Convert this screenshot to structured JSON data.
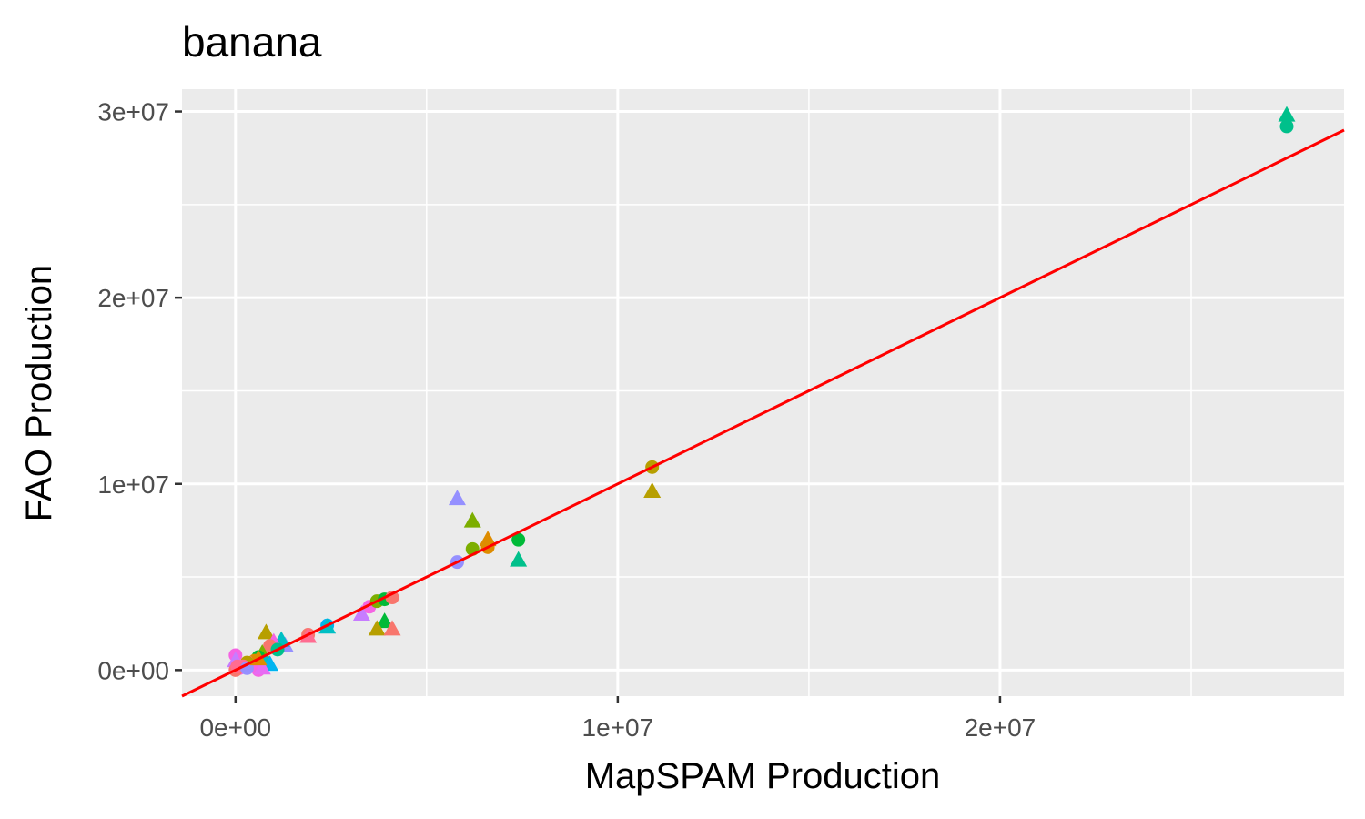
{
  "chart_data": {
    "type": "scatter",
    "title": "banana",
    "xlabel": "MapSPAM Production",
    "ylabel": "FAO Production",
    "xlim": [
      -1400000,
      29000000
    ],
    "ylim": [
      -1400000,
      31200000
    ],
    "x_ticks": [
      {
        "value": 0,
        "label": "0e+00"
      },
      {
        "value": 10000000,
        "label": "1e+07"
      },
      {
        "value": 20000000,
        "label": "2e+07"
      }
    ],
    "y_ticks": [
      {
        "value": 0,
        "label": "0e+00"
      },
      {
        "value": 10000000,
        "label": "1e+07"
      },
      {
        "value": 20000000,
        "label": "2e+07"
      },
      {
        "value": 30000000,
        "label": "3e+07"
      }
    ],
    "grid": true,
    "panel_background": "#ebebeb",
    "reference_line": {
      "x": [
        -1400000,
        29000000
      ],
      "y": [
        -1400000,
        29000000
      ],
      "color": "#ff0000"
    },
    "points": [
      {
        "x": 27500000,
        "y": 29200000,
        "shape": "circle",
        "color": "#00c08b"
      },
      {
        "x": 27500000,
        "y": 29800000,
        "shape": "triangle",
        "color": "#00c08b"
      },
      {
        "x": 10900000,
        "y": 10900000,
        "shape": "circle",
        "color": "#b79f00"
      },
      {
        "x": 10900000,
        "y": 9600000,
        "shape": "triangle",
        "color": "#b79f00"
      },
      {
        "x": 5800000,
        "y": 9200000,
        "shape": "triangle",
        "color": "#9590ff"
      },
      {
        "x": 5800000,
        "y": 5800000,
        "shape": "circle",
        "color": "#9590ff"
      },
      {
        "x": 6200000,
        "y": 8000000,
        "shape": "triangle",
        "color": "#7cae00"
      },
      {
        "x": 6200000,
        "y": 6500000,
        "shape": "circle",
        "color": "#7cae00"
      },
      {
        "x": 6600000,
        "y": 7000000,
        "shape": "triangle",
        "color": "#de8c00"
      },
      {
        "x": 6600000,
        "y": 6600000,
        "shape": "circle",
        "color": "#de8c00"
      },
      {
        "x": 7400000,
        "y": 7000000,
        "shape": "circle",
        "color": "#00ba38"
      },
      {
        "x": 7400000,
        "y": 5900000,
        "shape": "triangle",
        "color": "#00c08b"
      },
      {
        "x": 3500000,
        "y": 3400000,
        "shape": "circle",
        "color": "#f564e3"
      },
      {
        "x": 3300000,
        "y": 3000000,
        "shape": "triangle",
        "color": "#c77cff"
      },
      {
        "x": 3700000,
        "y": 3700000,
        "shape": "circle",
        "color": "#7cae00"
      },
      {
        "x": 3900000,
        "y": 3800000,
        "shape": "circle",
        "color": "#00ba38"
      },
      {
        "x": 4100000,
        "y": 3900000,
        "shape": "circle",
        "color": "#f8766d"
      },
      {
        "x": 3900000,
        "y": 2600000,
        "shape": "triangle",
        "color": "#00ba38"
      },
      {
        "x": 3700000,
        "y": 2200000,
        "shape": "triangle",
        "color": "#b79f00"
      },
      {
        "x": 4100000,
        "y": 2200000,
        "shape": "triangle",
        "color": "#f8766d"
      },
      {
        "x": 2400000,
        "y": 2400000,
        "shape": "circle",
        "color": "#00b4f0"
      },
      {
        "x": 2400000,
        "y": 2300000,
        "shape": "triangle",
        "color": "#00bfc4"
      },
      {
        "x": 1900000,
        "y": 1900000,
        "shape": "circle",
        "color": "#f8766d"
      },
      {
        "x": 1900000,
        "y": 1800000,
        "shape": "triangle",
        "color": "#ff6c91"
      },
      {
        "x": 1300000,
        "y": 1300000,
        "shape": "triangle",
        "color": "#9590ff"
      },
      {
        "x": 1200000,
        "y": 1600000,
        "shape": "triangle",
        "color": "#00bfc4"
      },
      {
        "x": 800000,
        "y": 2000000,
        "shape": "triangle",
        "color": "#b79f00"
      },
      {
        "x": 1000000,
        "y": 1500000,
        "shape": "triangle",
        "color": "#f564e3"
      },
      {
        "x": 900000,
        "y": 1300000,
        "shape": "circle",
        "color": "#f8766d"
      },
      {
        "x": 700000,
        "y": 900000,
        "shape": "triangle",
        "color": "#7cae00"
      },
      {
        "x": 600000,
        "y": 700000,
        "shape": "circle",
        "color": "#00ba38"
      },
      {
        "x": 800000,
        "y": 400000,
        "shape": "triangle",
        "color": "#00bfc4"
      },
      {
        "x": 900000,
        "y": 300000,
        "shape": "triangle",
        "color": "#00b4f0"
      },
      {
        "x": 500000,
        "y": 500000,
        "shape": "circle",
        "color": "#de8c00"
      },
      {
        "x": 400000,
        "y": 300000,
        "shape": "triangle",
        "color": "#f8766d"
      },
      {
        "x": 300000,
        "y": 400000,
        "shape": "circle",
        "color": "#b79f00"
      },
      {
        "x": 200000,
        "y": 200000,
        "shape": "circle",
        "color": "#ff6c91"
      },
      {
        "x": 100000,
        "y": 100000,
        "shape": "circle",
        "color": "#f564e3"
      },
      {
        "x": 0,
        "y": 800000,
        "shape": "circle",
        "color": "#f564e3"
      },
      {
        "x": 0,
        "y": 500000,
        "shape": "triangle",
        "color": "#c77cff"
      },
      {
        "x": 0,
        "y": 0,
        "shape": "circle",
        "color": "#f8766d"
      },
      {
        "x": 50000,
        "y": 200000,
        "shape": "circle",
        "color": "#ff6c91"
      },
      {
        "x": 600000,
        "y": 0,
        "shape": "circle",
        "color": "#f564e3"
      },
      {
        "x": 700000,
        "y": 100000,
        "shape": "triangle",
        "color": "#e76bf3"
      },
      {
        "x": 300000,
        "y": 100000,
        "shape": "circle",
        "color": "#9590ff"
      },
      {
        "x": 1100000,
        "y": 1100000,
        "shape": "circle",
        "color": "#00c08b"
      },
      {
        "x": 600000,
        "y": 600000,
        "shape": "triangle",
        "color": "#de8c00"
      }
    ]
  }
}
